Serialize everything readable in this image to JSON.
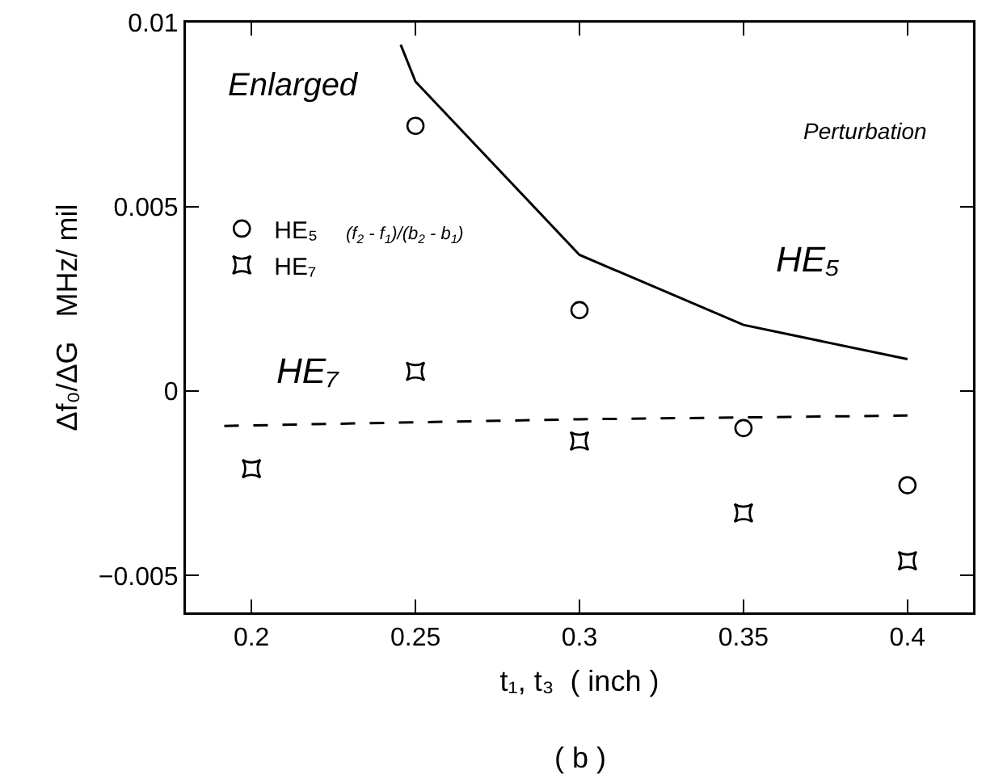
{
  "chart_data": {
    "type": "scatter",
    "xlabel": "t₁, t₃  ( inch )",
    "ylabel": "Δf₀/ΔG   MHz/ mil",
    "xlim": [
      0.18,
      0.42
    ],
    "xticks": [
      0.2,
      0.25,
      0.3,
      0.35,
      0.4
    ],
    "ylim": [
      -0.006,
      0.01
    ],
    "yticks": [
      {
        "value": -0.005,
        "label": "−0.005"
      },
      0,
      0.005,
      0.01
    ],
    "series": [
      {
        "name": "HE₅",
        "type": "scatter",
        "marker": "circle",
        "color": "#000000",
        "x": [
          0.25,
          0.3,
          0.35,
          0.4
        ],
        "values": [
          0.0072,
          0.0022,
          -0.001,
          -0.00255
        ]
      },
      {
        "name": "HE₇",
        "type": "scatter",
        "marker": "star",
        "color": "#000000",
        "x": [
          0.2,
          0.25,
          0.3,
          0.35,
          0.4
        ],
        "values": [
          -0.0021,
          0.00054,
          -0.00135,
          -0.0033,
          -0.0046
        ]
      },
      {
        "type": "line",
        "line_style": "solid",
        "marker": "none",
        "color": "#000000",
        "x": [
          0.2455,
          0.25,
          0.3,
          0.35,
          0.4
        ],
        "values": [
          0.0094,
          0.0084,
          0.0037,
          0.0018,
          0.00087
        ]
      },
      {
        "type": "line",
        "line_style": "dashed",
        "marker": "none",
        "color": "#000000",
        "x": [
          0.1917,
          0.3,
          0.4
        ],
        "values": [
          -0.00094,
          -0.00076,
          -0.00066
        ]
      }
    ],
    "legend": "left",
    "grid": false,
    "annotations": [
      "Enlarged",
      "Perturbation",
      "(f$_{2}$ - f$_{1}$)/(b$_{2}$ - b$_{1}$)",
      "HE₅",
      "HE₇",
      "( b )"
    ]
  }
}
